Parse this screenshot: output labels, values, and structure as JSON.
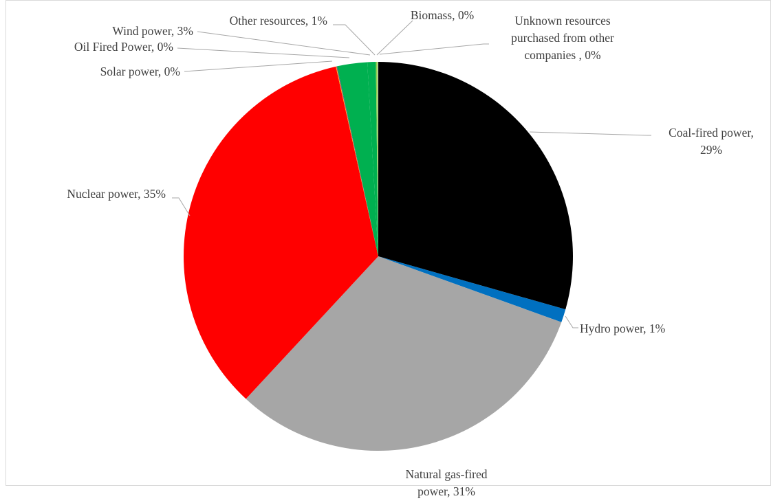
{
  "chart_data": {
    "type": "pie",
    "start_angle_deg": 0,
    "direction": "clockwise",
    "slices": [
      {
        "name": "Coal-fired power",
        "value": 29.4,
        "color": "#000000",
        "label_lines": [
          "Coal-fired power,",
          "29%"
        ]
      },
      {
        "name": "Hydro power",
        "value": 1.1,
        "color": "#0070c0",
        "label_lines": [
          "Hydro power, 1%"
        ]
      },
      {
        "name": "Natural gas-fired power",
        "value": 31.4,
        "color": "#a6a6a6",
        "label_lines": [
          "Natural gas-fired",
          "power, 31%"
        ]
      },
      {
        "name": "Nuclear power",
        "value": 34.6,
        "color": "#ff0000",
        "label_lines": [
          "Nuclear power, 35%"
        ]
      },
      {
        "name": "Solar power",
        "value": 0.05,
        "color": "#ffc000",
        "label_lines": [
          "Solar power, 0%"
        ]
      },
      {
        "name": "Oil Fired Power",
        "value": 0.05,
        "color": "#7030a0",
        "label_lines": [
          "Oil Fired Power, 0%"
        ]
      },
      {
        "name": "Wind power",
        "value": 2.5,
        "color": "#00b050",
        "label_lines": [
          "Wind power, 3%"
        ]
      },
      {
        "name": "Other resources",
        "value": 0.7,
        "color": "#00b050",
        "label_lines": [
          "Other resources, 1%"
        ]
      },
      {
        "name": "Biomass",
        "value": 0.15,
        "color": "#92d050",
        "label_lines": [
          "Biomass, 0%"
        ]
      },
      {
        "name": "Unknown resources purchased from other companies",
        "value": 0.05,
        "color": "#d9d9d9",
        "label_lines": [
          "Unknown resources",
          "purchased from other",
          "companies , 0%"
        ]
      }
    ],
    "legend": "none"
  }
}
